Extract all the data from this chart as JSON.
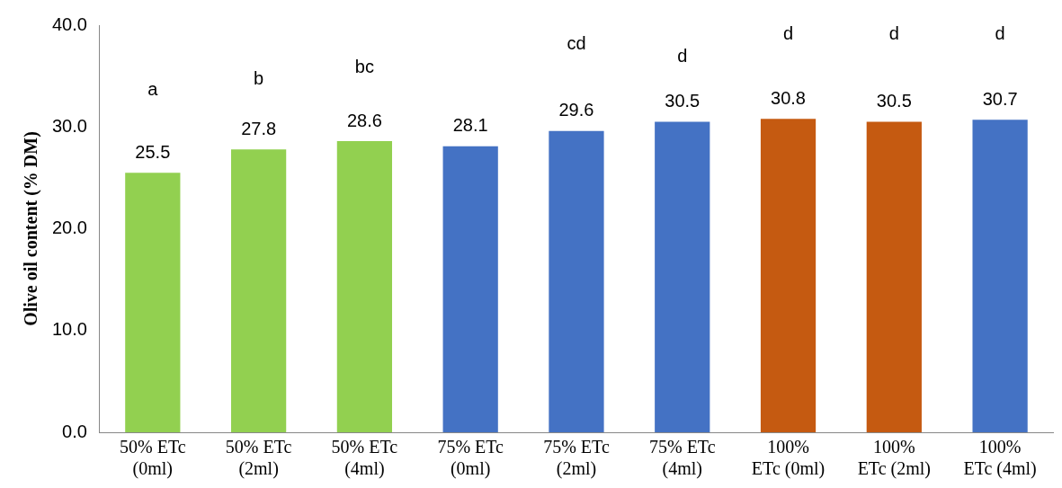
{
  "chart_data": {
    "type": "bar",
    "ylabel": "Olive oil content (% DM)",
    "categories": [
      "50% ETc\n(0ml)",
      "50% ETc\n(2ml)",
      "50% ETc\n(4ml)",
      "75% ETc\n(0ml)",
      "75% ETc\n(2ml)",
      "75% ETc\n(4ml)",
      "100%\nETc (0ml)",
      "100%\nETc (2ml)",
      "100%\nETc (4ml)"
    ],
    "values": [
      25.5,
      27.8,
      28.6,
      28.1,
      29.6,
      30.5,
      30.8,
      30.5,
      30.7
    ],
    "colors": [
      "#92d050",
      "#92d050",
      "#92d050",
      "#4472c4",
      "#4472c4",
      "#4472c4",
      "#c55a11",
      "#c55a11",
      "#4472c4"
    ],
    "data_labels": true,
    "ylim": [
      0,
      40
    ],
    "yticks": [
      {
        "value": 0,
        "label": "0.0"
      },
      {
        "value": 10,
        "label": "10.0"
      },
      {
        "value": 20,
        "label": "20.0"
      },
      {
        "value": 30,
        "label": "30.0"
      },
      {
        "value": 40,
        "label": "40.0"
      }
    ],
    "grid": false,
    "legend": false,
    "annotations": [
      "a",
      "b",
      "bc",
      "cd",
      "d",
      "d",
      "d",
      "d"
    ]
  }
}
